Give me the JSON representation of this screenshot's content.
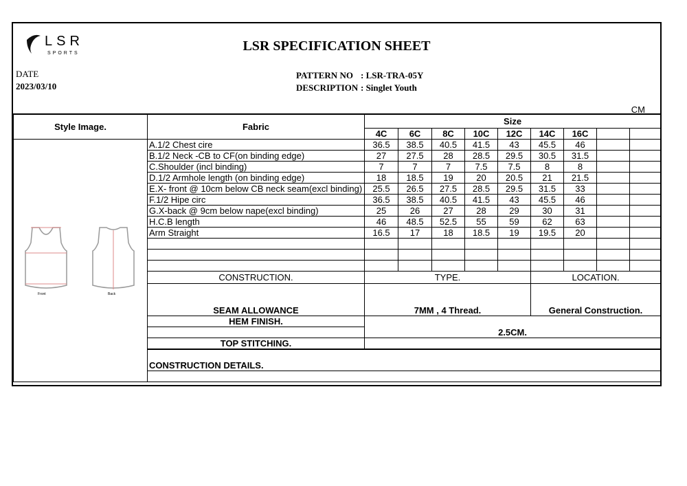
{
  "logo": {
    "text": "LSR",
    "sub": "SPORTS"
  },
  "title": "LSR SPECIFICATION SHEET",
  "date_label": "DATE",
  "date": "2023/03/10",
  "pattern_label": "PATTERN  NO",
  "pattern": ": LSR-TRA-05Y",
  "description_label": "DESCRIPTION",
  "description": ": Singlet Youth",
  "unit": "CM",
  "headers": {
    "style": "Style Image.",
    "fabric": "Fabric",
    "size": "Size"
  },
  "sizes": [
    "4C",
    "6C",
    "8C",
    "10C",
    "12C",
    "14C",
    "16C",
    "",
    ""
  ],
  "image_labels": {
    "front": "Front",
    "back": "Back"
  },
  "rows": [
    {
      "label": "A.1/2 Chest cire",
      "v": [
        "36.5",
        "38.5",
        "40.5",
        "41.5",
        "43",
        "45.5",
        "46"
      ]
    },
    {
      "label": "B.1/2 Neck -CB to CF(on binding edge)",
      "v": [
        "27",
        "27.5",
        "28",
        "28.5",
        "29.5",
        "30.5",
        "31.5"
      ]
    },
    {
      "label": "C.Shoulder (incl binding)",
      "v": [
        "7",
        "7",
        "7",
        "7.5",
        "7.5",
        "8",
        "8"
      ]
    },
    {
      "label": "D.1/2 Armhole length (on binding edge)",
      "v": [
        "18",
        "18.5",
        "19",
        "20",
        "20.5",
        "21",
        "21.5"
      ]
    },
    {
      "label": "E.X- front @ 10cm below CB neck seam(excl binding)",
      "v": [
        "25.5",
        "26.5",
        "27.5",
        "28.5",
        "29.5",
        "31.5",
        "33"
      ]
    },
    {
      "label": "F.1/2 Hipe circ",
      "v": [
        "36.5",
        "38.5",
        "40.5",
        "41.5",
        "43",
        "45.5",
        "46"
      ]
    },
    {
      "label": "G.X-back @ 9cm below nape(excl binding)",
      "v": [
        "25",
        "26",
        "27",
        "28",
        "29",
        "30",
        "31"
      ]
    },
    {
      "label": "H.C.B length",
      "v": [
        "46",
        "48.5",
        "52.5",
        "55",
        "59",
        "62",
        "63"
      ]
    },
    {
      "label": "Arm Straight",
      "v": [
        "16.5",
        "17",
        "18",
        "18.5",
        "19",
        "19.5",
        "20"
      ]
    }
  ],
  "construction": {
    "h1": "CONSTRUCTION.",
    "h2": "TYPE.",
    "h3": "LOCATION.",
    "seam": "SEAM ALLOWANCE",
    "seam_type": "7MM , 4 Thread.",
    "seam_loc": "General Construction.",
    "hem": "HEM FINISH.",
    "hem_val": "2.5CM.",
    "top": "TOP STITCHING."
  },
  "details": "CONSTRUCTION DETAILS."
}
